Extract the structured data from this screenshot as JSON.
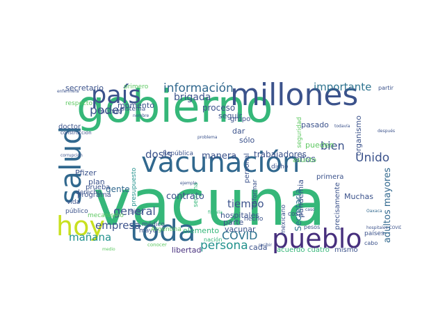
{
  "wordcloud": {
    "words": [
      {
        "text": "vacuna",
        "color": "#35b779"
      },
      {
        "text": "gobierno",
        "color": "#35b779"
      },
      {
        "text": "millones",
        "color": "#3b528b"
      },
      {
        "text": "vacunación",
        "color": "#31688e"
      },
      {
        "text": "país",
        "color": "#3b528b"
      },
      {
        "text": "salud",
        "color": "#31688e"
      },
      {
        "text": "hoy",
        "color": "#c8e020"
      },
      {
        "text": "toda",
        "color": "#31688e"
      },
      {
        "text": "pueblo",
        "color": "#472f7d"
      },
      {
        "text": "información",
        "color": "#31688e"
      },
      {
        "text": "importante",
        "color": "#2c728e"
      },
      {
        "text": "brigada",
        "color": "#3b528b"
      },
      {
        "text": "poder",
        "color": "#3b528b"
      },
      {
        "text": "general",
        "color": "#3b528b"
      },
      {
        "text": "empresa",
        "color": "#3b528b"
      },
      {
        "text": "mañana",
        "color": "#21918c"
      },
      {
        "text": "COVID",
        "color": "#2c728e"
      },
      {
        "text": "persona",
        "color": "#21918c"
      },
      {
        "text": "tiempo",
        "color": "#3b528b"
      },
      {
        "text": "manera",
        "color": "#3b528b"
      },
      {
        "text": "dosis",
        "color": "#3b528b"
      },
      {
        "text": "contrato",
        "color": "#3b528b"
      },
      {
        "text": "Unido",
        "color": "#3b528b"
      },
      {
        "text": "bien",
        "color": "#3b528b"
      },
      {
        "text": "trabajadores",
        "color": "#3b528b"
      },
      {
        "text": "adultos mayores",
        "color": "#31688e"
      },
      {
        "text": "secretario",
        "color": "#3b528b"
      },
      {
        "text": "momento",
        "color": "#3b528b"
      },
      {
        "text": "proceso",
        "color": "#3b528b"
      },
      {
        "text": "mundo",
        "color": "#3b528b"
      },
      {
        "text": "pasado",
        "color": "#3b528b"
      },
      {
        "text": "organismo",
        "color": "#3b528b"
      },
      {
        "text": "hospitales",
        "color": "#3b528b"
      },
      {
        "text": "parte",
        "color": "#3b528b"
      },
      {
        "text": "vacunar",
        "color": "#3b528b"
      },
      {
        "text": "cada",
        "color": "#3b528b"
      },
      {
        "text": "mismo",
        "color": "#3b528b"
      },
      {
        "text": "acuerdo",
        "color": "#35b779"
      },
      {
        "text": "cuatro",
        "color": "#35b779"
      },
      {
        "text": "pandemia",
        "color": "#3b528b"
      },
      {
        "text": "años",
        "color": "#3b528b"
      },
      {
        "text": "Muchas",
        "color": "#3b528b"
      },
      {
        "text": "gente",
        "color": "#31688e"
      },
      {
        "text": "plan",
        "color": "#3b528b"
      },
      {
        "text": "prueba",
        "color": "#3b528b"
      },
      {
        "text": "programa",
        "color": "#3b528b"
      },
      {
        "text": "Pfizer",
        "color": "#3b528b"
      },
      {
        "text": "elemento",
        "color": "#35b779"
      },
      {
        "text": "libertad",
        "color": "#472f7d"
      },
      {
        "text": "República",
        "color": "#3b528b"
      },
      {
        "text": "seguir",
        "color": "#3b528b"
      },
      {
        "text": "dar",
        "color": "#3b528b"
      },
      {
        "text": "sólo",
        "color": "#3b528b"
      },
      {
        "text": "grupo",
        "color": "#3b528b"
      },
      {
        "text": "Secretaría",
        "color": "#2c728e"
      },
      {
        "text": "primera",
        "color": "#3b528b"
      },
      {
        "text": "pueden",
        "color": "#5ec962"
      },
      {
        "text": "doctor",
        "color": "#3b528b"
      },
      {
        "text": "presupuesto",
        "color": "#21918c"
      },
      {
        "text": "mayor",
        "color": "#3b528b"
      },
      {
        "text": "médico",
        "color": "#3b528b"
      },
      {
        "text": "Argentina",
        "color": "#5ec962"
      },
      {
        "text": "respecto",
        "color": "#5ec962"
      },
      {
        "text": "primero",
        "color": "#5ec962"
      },
      {
        "text": "sistema",
        "color": "#3b528b"
      },
      {
        "text": "dicho",
        "color": "#3b528b"
      },
      {
        "text": "personal",
        "color": "#3b528b"
      },
      {
        "text": "informar",
        "color": "#3b528b"
      },
      {
        "text": "precisamente",
        "color": "#3b528b"
      },
      {
        "text": "países",
        "color": "#3b528b"
      },
      {
        "text": "cabo",
        "color": "#3b528b"
      },
      {
        "text": "vida",
        "color": "#3b528b"
      },
      {
        "text": "público",
        "color": "#3b528b"
      },
      {
        "text": "derecho",
        "color": "#3b528b"
      },
      {
        "text": "mecanismo",
        "color": "#5ec962"
      },
      {
        "text": "semana",
        "color": "#35b779"
      },
      {
        "text": "sido",
        "color": "#3b528b"
      },
      {
        "text": "hecho",
        "color": "#3b528b"
      },
      {
        "text": "mexicano",
        "color": "#3b528b"
      },
      {
        "text": "cosa",
        "color": "#3b528b"
      },
      {
        "text": "asunto",
        "color": "#5ec962"
      },
      {
        "text": "seguridad",
        "color": "#5ec962"
      },
      {
        "text": "ejemplo",
        "color": "#3b528b"
      },
      {
        "text": "después",
        "color": "#3b528b"
      },
      {
        "text": "nación",
        "color": "#35b779"
      },
      {
        "text": "fiscalía",
        "color": "#35b779"
      },
      {
        "text": "conocer",
        "color": "#5ec962"
      },
      {
        "text": "medio",
        "color": "#5ec962"
      },
      {
        "text": "problema",
        "color": "#3b528b"
      },
      {
        "text": "hospitales COVID",
        "color": "#3b528b"
      },
      {
        "text": "Oaxaca",
        "color": "#31688e"
      },
      {
        "text": "construcción",
        "color": "#3b528b"
      },
      {
        "text": "corrupción",
        "color": "#3b528b"
      },
      {
        "text": "enfermera",
        "color": "#3b528b"
      },
      {
        "text": "partir",
        "color": "#3b528b"
      },
      {
        "text": "todavía",
        "color": "#3b528b"
      },
      {
        "text": "caso",
        "color": "#3b528b"
      },
      {
        "text": "pesos",
        "color": "#3b528b"
      },
      {
        "text": "nombre",
        "color": "#3b528b"
      },
      {
        "text": "recibir",
        "color": "#3b528b"
      }
    ]
  }
}
